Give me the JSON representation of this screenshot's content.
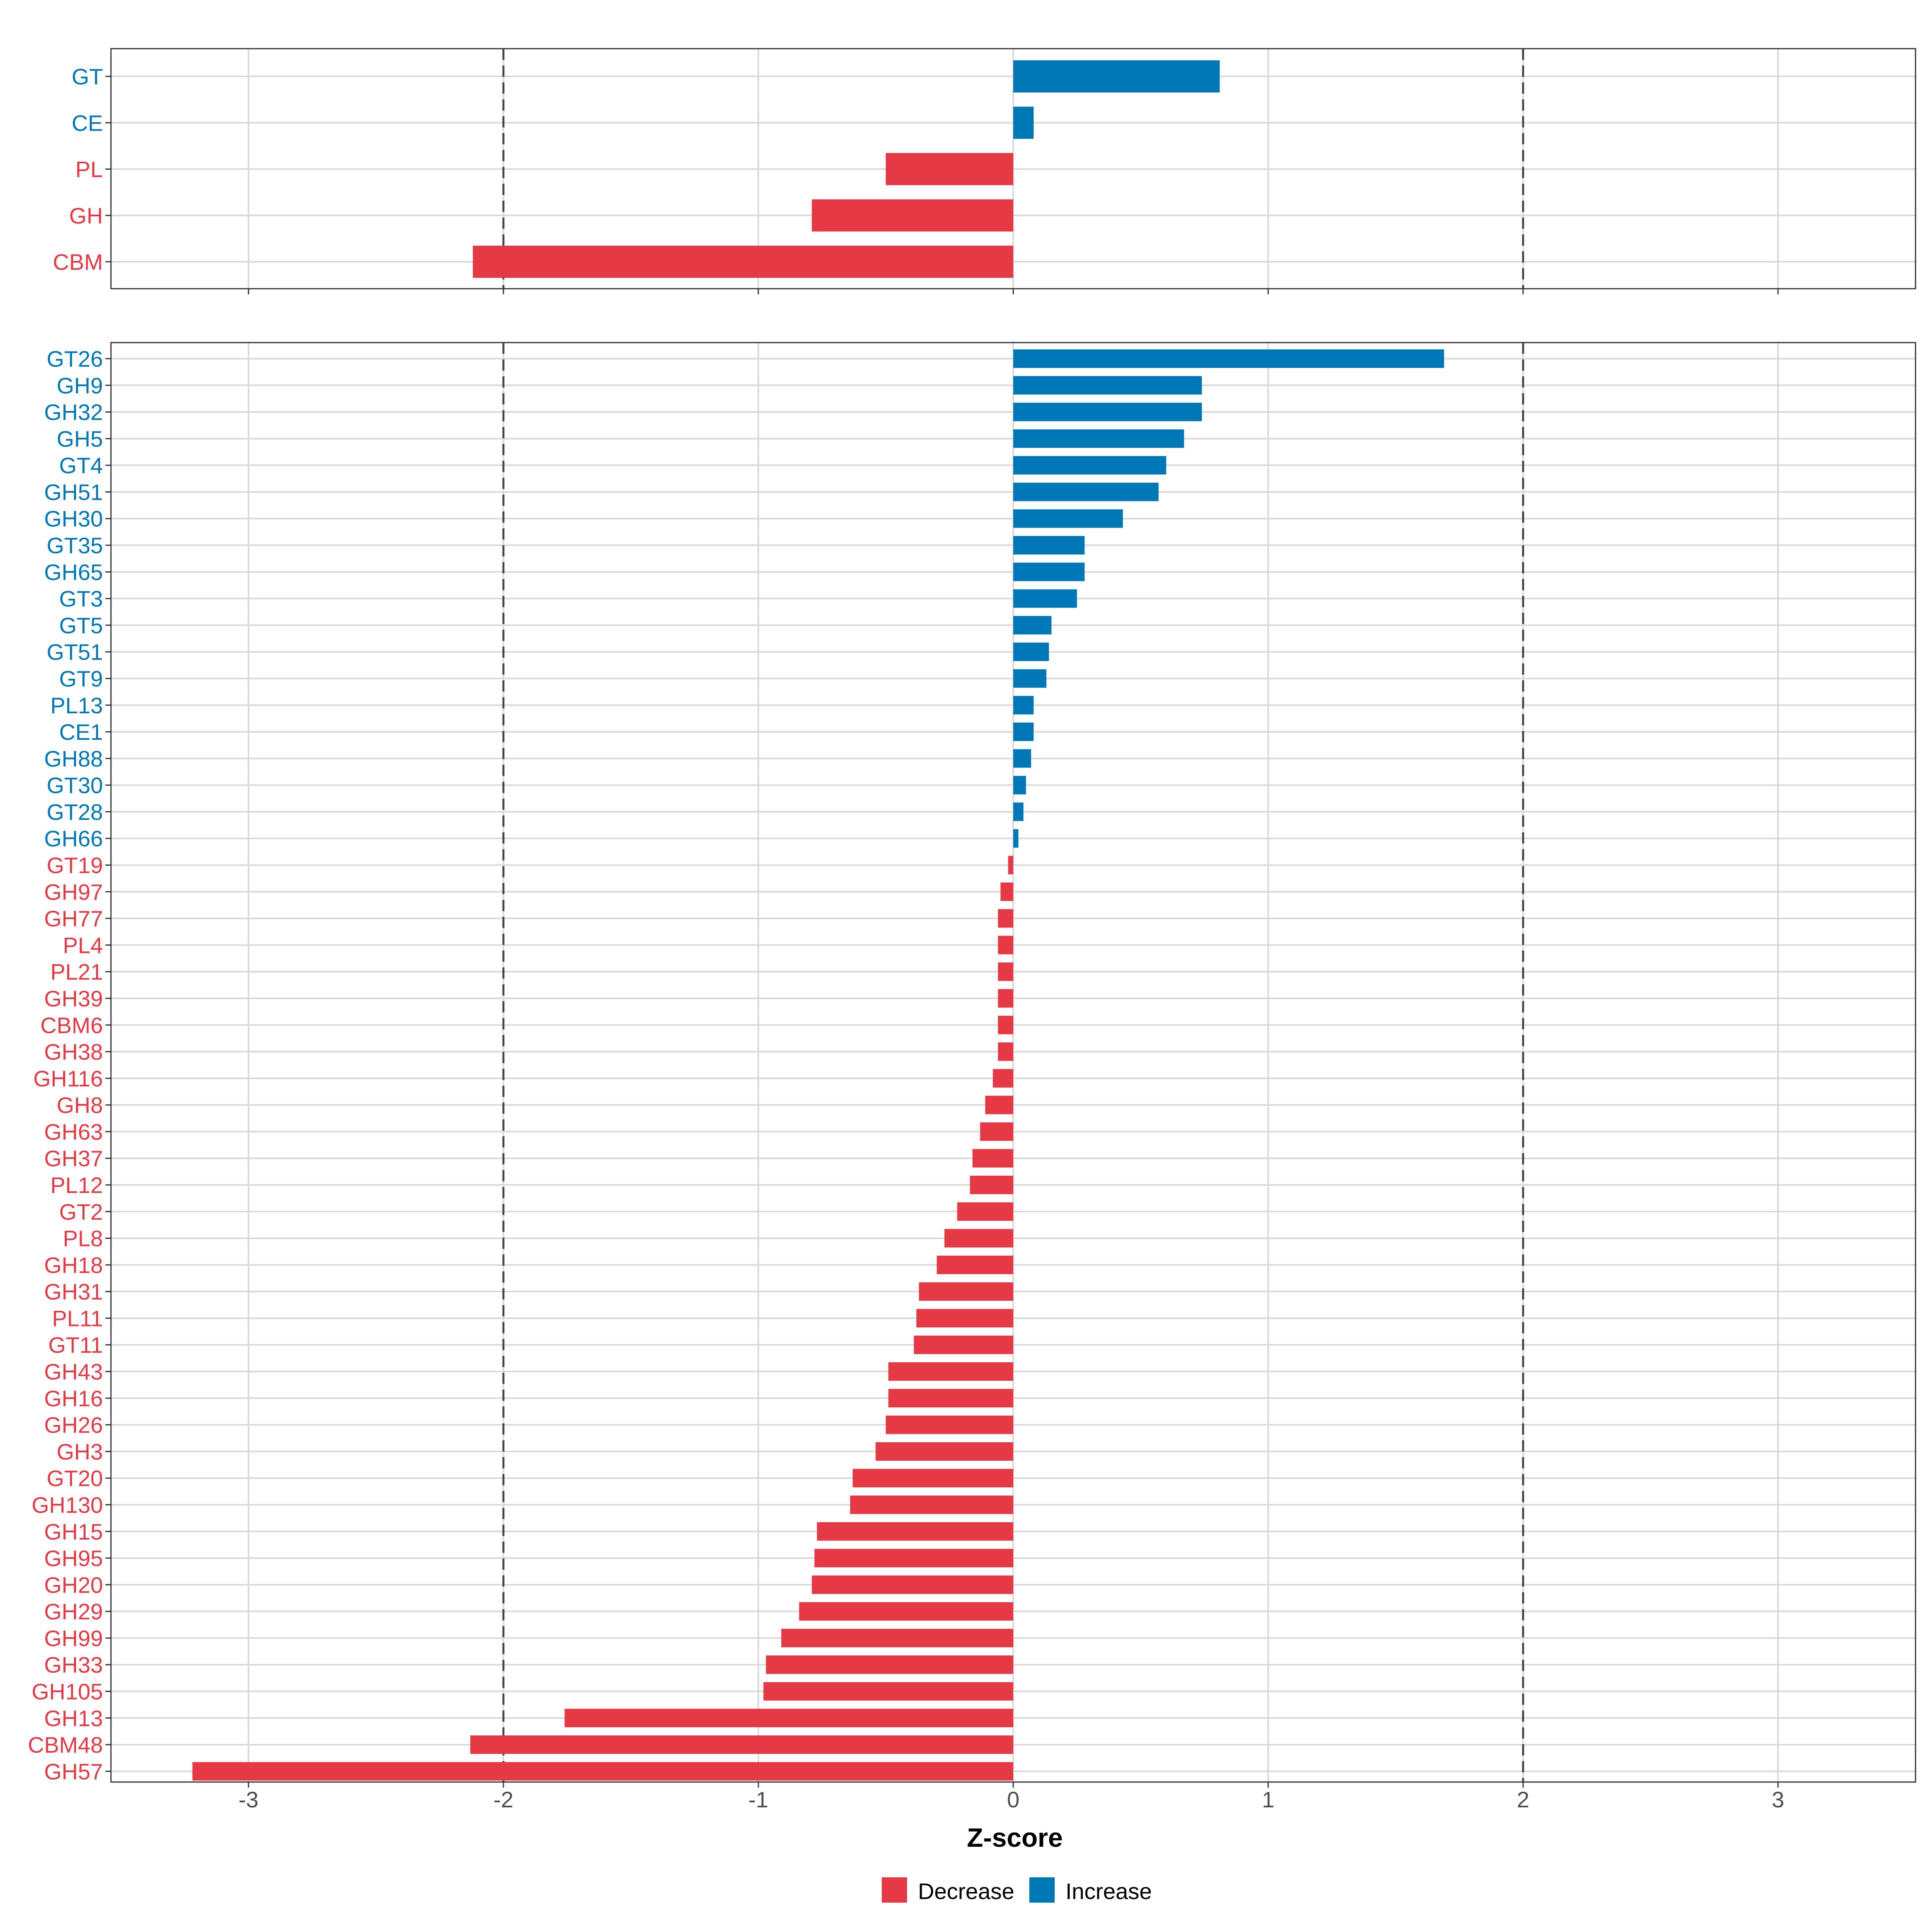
{
  "colors": {
    "decrease": "#E63946",
    "increase": "#0077B6",
    "grid": "#D9D9D9",
    "frame": "#333333",
    "ref_line": "#444444"
  },
  "legend": {
    "decrease_label": "Decrease",
    "increase_label": "Increase"
  },
  "chart_data": [
    {
      "type": "bar",
      "orientation": "horizontal",
      "panel": "top",
      "categories": [
        "GT",
        "CE",
        "PL",
        "GH",
        "CBM"
      ],
      "values": [
        0.81,
        0.08,
        -0.5,
        -0.79,
        -2.12
      ],
      "xlim": [
        -3.53,
        3.53
      ],
      "xticks": [
        -3,
        -2,
        -1,
        0,
        1,
        2,
        3
      ],
      "reference_lines": [
        -2,
        2
      ],
      "xlabel": "Z-score"
    },
    {
      "type": "bar",
      "orientation": "horizontal",
      "panel": "bottom",
      "categories": [
        "GT26",
        "GH9",
        "GH32",
        "GH5",
        "GT4",
        "GH51",
        "GH30",
        "GT35",
        "GH65",
        "GT3",
        "GT5",
        "GT51",
        "GT9",
        "PL13",
        "CE1",
        "GH88",
        "GT30",
        "GT28",
        "GH66",
        "GT19",
        "GH97",
        "GH77",
        "PL4",
        "PL21",
        "GH39",
        "CBM6",
        "GH38",
        "GH116",
        "GH8",
        "GH63",
        "GH37",
        "PL12",
        "GT2",
        "PL8",
        "GH18",
        "GH31",
        "PL11",
        "GT11",
        "GH43",
        "GH16",
        "GH26",
        "GH3",
        "GT20",
        "GH130",
        "GH15",
        "GH95",
        "GH20",
        "GH29",
        "GH99",
        "GH33",
        "GH105",
        "GH13",
        "CBM48",
        "GH57"
      ],
      "values": [
        1.69,
        0.74,
        0.74,
        0.67,
        0.6,
        0.57,
        0.43,
        0.28,
        0.28,
        0.25,
        0.15,
        0.14,
        0.13,
        0.08,
        0.08,
        0.07,
        0.05,
        0.04,
        0.02,
        -0.02,
        -0.05,
        -0.06,
        -0.06,
        -0.06,
        -0.06,
        -0.06,
        -0.06,
        -0.08,
        -0.11,
        -0.13,
        -0.16,
        -0.17,
        -0.22,
        -0.27,
        -0.3,
        -0.37,
        -0.38,
        -0.39,
        -0.49,
        -0.49,
        -0.5,
        -0.54,
        -0.63,
        -0.64,
        -0.77,
        -0.78,
        -0.79,
        -0.84,
        -0.91,
        -0.97,
        -0.98,
        -1.76,
        -2.13,
        -3.22
      ],
      "xlim": [
        -3.53,
        3.53
      ],
      "xticks": [
        -3,
        -2,
        -1,
        0,
        1,
        2,
        3
      ],
      "reference_lines": [
        -2,
        2
      ],
      "xlabel": "Z-score"
    }
  ]
}
